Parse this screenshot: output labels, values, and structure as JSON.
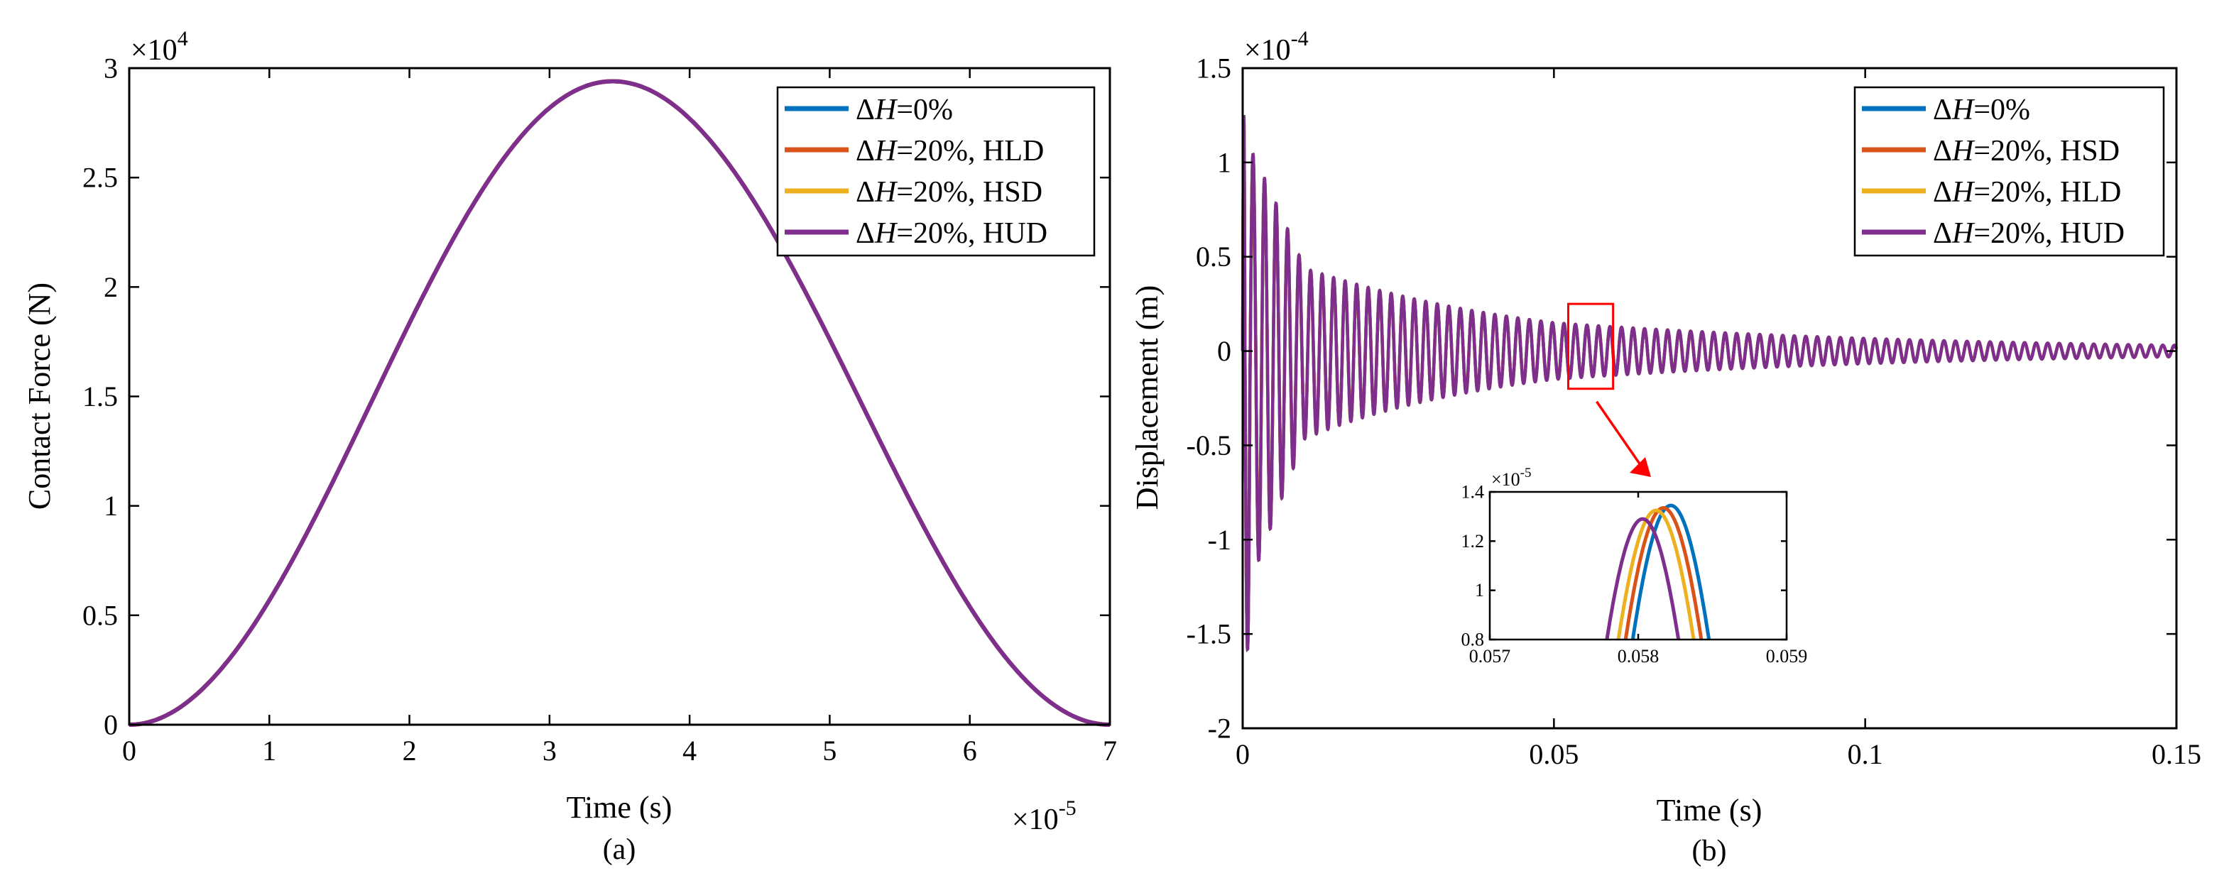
{
  "figure": {
    "colors": {
      "dh0": "#0072BD",
      "dh20_red": "#D95319",
      "dh20_yellow": "#EDB120",
      "dh20_hud": "#7E2F8E",
      "zoom_box": "#FF0000",
      "axis": "#000000"
    }
  },
  "chart_data": [
    {
      "id": "a",
      "type": "line",
      "caption": "(a)",
      "xlabel": "Time (s)",
      "ylabel": "Contact Force (N)",
      "xlim": [
        0,
        7
      ],
      "ylim": [
        0,
        3
      ],
      "x_multiplier": "×10",
      "x_exponent": "-5",
      "y_multiplier": "×10",
      "y_exponent": "4",
      "xticks": [
        0,
        1,
        2,
        3,
        4,
        5,
        6,
        7
      ],
      "xtick_labels": [
        "0",
        "1",
        "2",
        "3",
        "4",
        "5",
        "6",
        "7"
      ],
      "yticks": [
        0,
        0.5,
        1,
        1.5,
        2,
        2.5,
        3
      ],
      "ytick_labels": [
        "0",
        "0.5",
        "1",
        "1.5",
        "2",
        "2.5",
        "3"
      ],
      "curve": {
        "description": "half-sine pulse, identical for all four cases",
        "peak_time": 3.45,
        "peak_value": 2.94,
        "duration": 7.0
      },
      "legend": [
        {
          "delta": "Δ",
          "var": "H",
          "rest": "=0%",
          "color_key": "dh0"
        },
        {
          "delta": "Δ",
          "var": "H",
          "rest": "=20%, HLD",
          "color_key": "dh20_red"
        },
        {
          "delta": "Δ",
          "var": "H",
          "rest": "=20%, HSD",
          "color_key": "dh20_yellow"
        },
        {
          "delta": "Δ",
          "var": "H",
          "rest": "=20%, HUD",
          "color_key": "dh20_hud"
        }
      ],
      "legend_position": "top-right"
    },
    {
      "id": "b",
      "type": "line",
      "caption": "(b)",
      "xlabel": "Time (s)",
      "ylabel": "Displacement (m)",
      "xlim": [
        0,
        0.15
      ],
      "ylim": [
        -2,
        1.5
      ],
      "y_multiplier": "×10",
      "y_exponent": "-4",
      "xticks": [
        0,
        0.05,
        0.1,
        0.15
      ],
      "xtick_labels": [
        "0",
        "0.05",
        "0.1",
        "0.15"
      ],
      "yticks": [
        -2,
        -1.5,
        -1,
        -0.5,
        0,
        0.5,
        1,
        1.5
      ],
      "ytick_labels": [
        "-2",
        "-1.5",
        "-1",
        "-0.5",
        "0",
        "0.5",
        "1",
        "1.5"
      ],
      "curve": {
        "description": "decaying oscillation",
        "initial_peak": 1.25,
        "initial_trough": -1.58,
        "envelope_at_0_01": 0.45,
        "envelope_at_0_05": 0.15,
        "envelope_at_0_15": 0.03,
        "period": 0.00185
      },
      "legend": [
        {
          "delta": "Δ",
          "var": "H",
          "rest": "=0%",
          "color_key": "dh0"
        },
        {
          "delta": "Δ",
          "var": "H",
          "rest": "=20%, HSD",
          "color_key": "dh20_red"
        },
        {
          "delta": "Δ",
          "var": "H",
          "rest": "=20%, HLD",
          "color_key": "dh20_yellow"
        },
        {
          "delta": "Δ",
          "var": "H",
          "rest": "=20%, HUD",
          "color_key": "dh20_hud"
        }
      ],
      "legend_position": "top-right",
      "zoom_box": {
        "x": [
          0.0523,
          0.0595
        ],
        "y": [
          -0.2,
          0.25
        ]
      },
      "inset": {
        "xlim": [
          0.057,
          0.059
        ],
        "ylim": [
          0.8,
          1.4
        ],
        "y_multiplier": "×10",
        "y_exponent": "-5",
        "xticks": [
          0.057,
          0.058,
          0.059
        ],
        "xtick_labels": [
          "0.057",
          "0.058",
          "0.059"
        ],
        "yticks": [
          0.8,
          1,
          1.2,
          1.4
        ],
        "ytick_labels": [
          "0.8",
          "1",
          "1.2",
          "1.4"
        ],
        "peaks": [
          {
            "color_key": "dh0",
            "peak_x": 0.05822,
            "peak_y": 1.365,
            "half_width": 0.00037
          },
          {
            "color_key": "dh20_red",
            "peak_x": 0.05817,
            "peak_y": 1.355,
            "half_width": 0.00037
          },
          {
            "color_key": "dh20_yellow",
            "peak_x": 0.05812,
            "peak_y": 1.345,
            "half_width": 0.00037
          },
          {
            "color_key": "dh20_hud",
            "peak_x": 0.05803,
            "peak_y": 1.31,
            "half_width": 0.00036
          }
        ]
      }
    }
  ]
}
